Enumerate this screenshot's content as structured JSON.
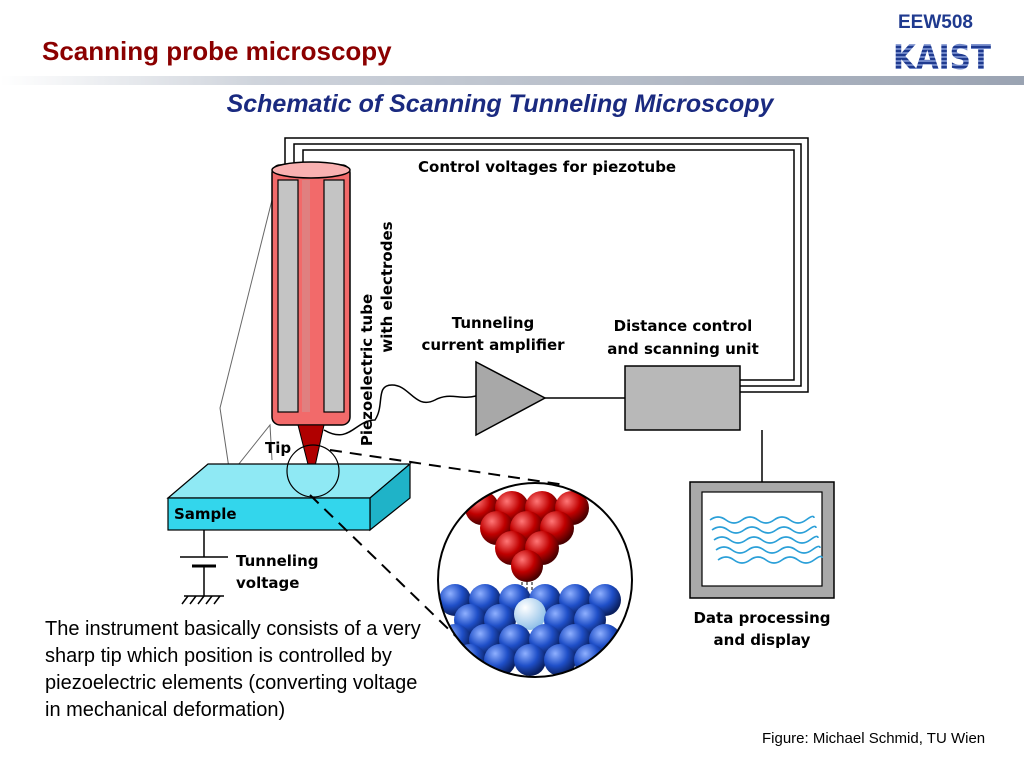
{
  "header": {
    "title": "Scanning probe microscopy",
    "course_code": "EEW508",
    "logo_text": "KAIST"
  },
  "subtitle": "Schematic of Scanning Tunneling Microscopy",
  "diagram": {
    "label_control_voltages": "Control voltages for piezotube",
    "label_piezo_line1": "Piezoelectric tube",
    "label_piezo_line2": "with electrodes",
    "label_amp_line1": "Tunneling",
    "label_amp_line2": "current amplifier",
    "label_dist_line1": "Distance control",
    "label_dist_line2": "and scanning unit",
    "label_tip": "Tip",
    "label_sample": "Sample",
    "label_voltage_line1": "Tunneling",
    "label_voltage_line2": "voltage",
    "label_display_line1": "Data processing",
    "label_display_line2": "and display",
    "colors": {
      "piezo_tube": "#f26a6a",
      "sample": "#33d6ec",
      "amplifier": "#a8a8a8",
      "tip_atoms": "#c00000",
      "sample_atoms": "#1f4fc8"
    }
  },
  "description": "The instrument basically consists of a very sharp tip which position is controlled by piezoelectric elements (converting voltage in mechanical deformation)",
  "credit": "Figure: Michael Schmid, TU Wien"
}
